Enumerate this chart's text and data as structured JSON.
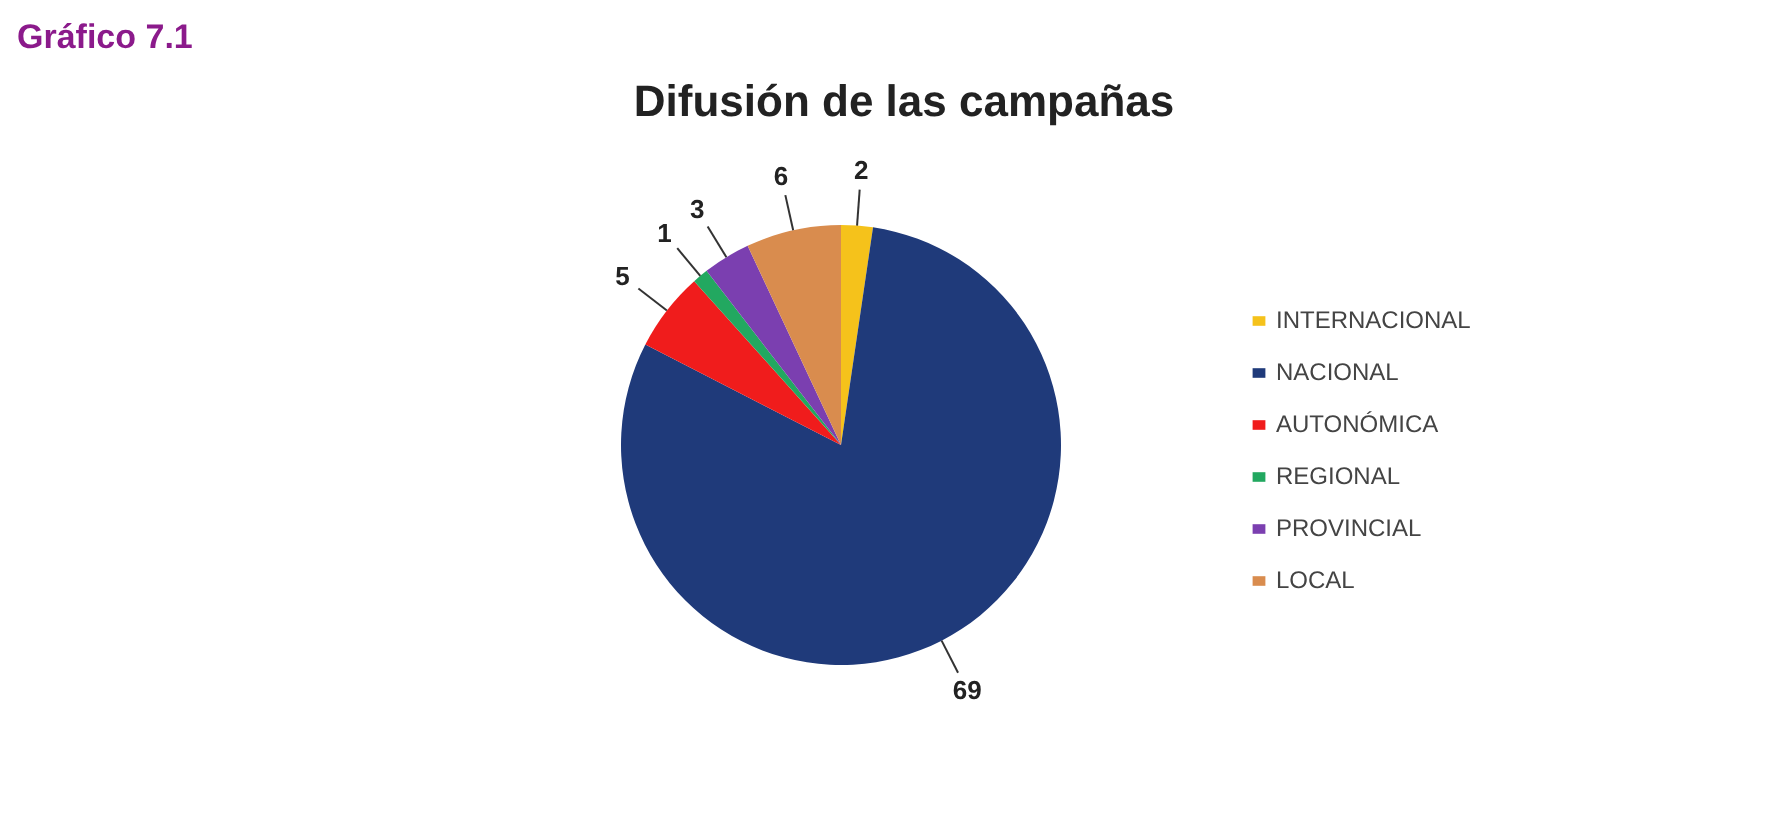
{
  "chart_data": {
    "type": "pie",
    "title": "Difusión de las campañas",
    "categories": [
      "INTERNACIONAL",
      "NACIONAL",
      "AUTONÓMICA",
      "REGIONAL",
      "PROVINCIAL",
      "LOCAL"
    ],
    "values": [
      2,
      69,
      5,
      1,
      3,
      6
    ],
    "colors": [
      "#f5c21b",
      "#1f3a7a",
      "#f01c1c",
      "#22a860",
      "#7b3fb0",
      "#d98c4e"
    ],
    "data_labels": true,
    "legend": "right",
    "annotations": [
      "Gráfico 7.1"
    ]
  }
}
